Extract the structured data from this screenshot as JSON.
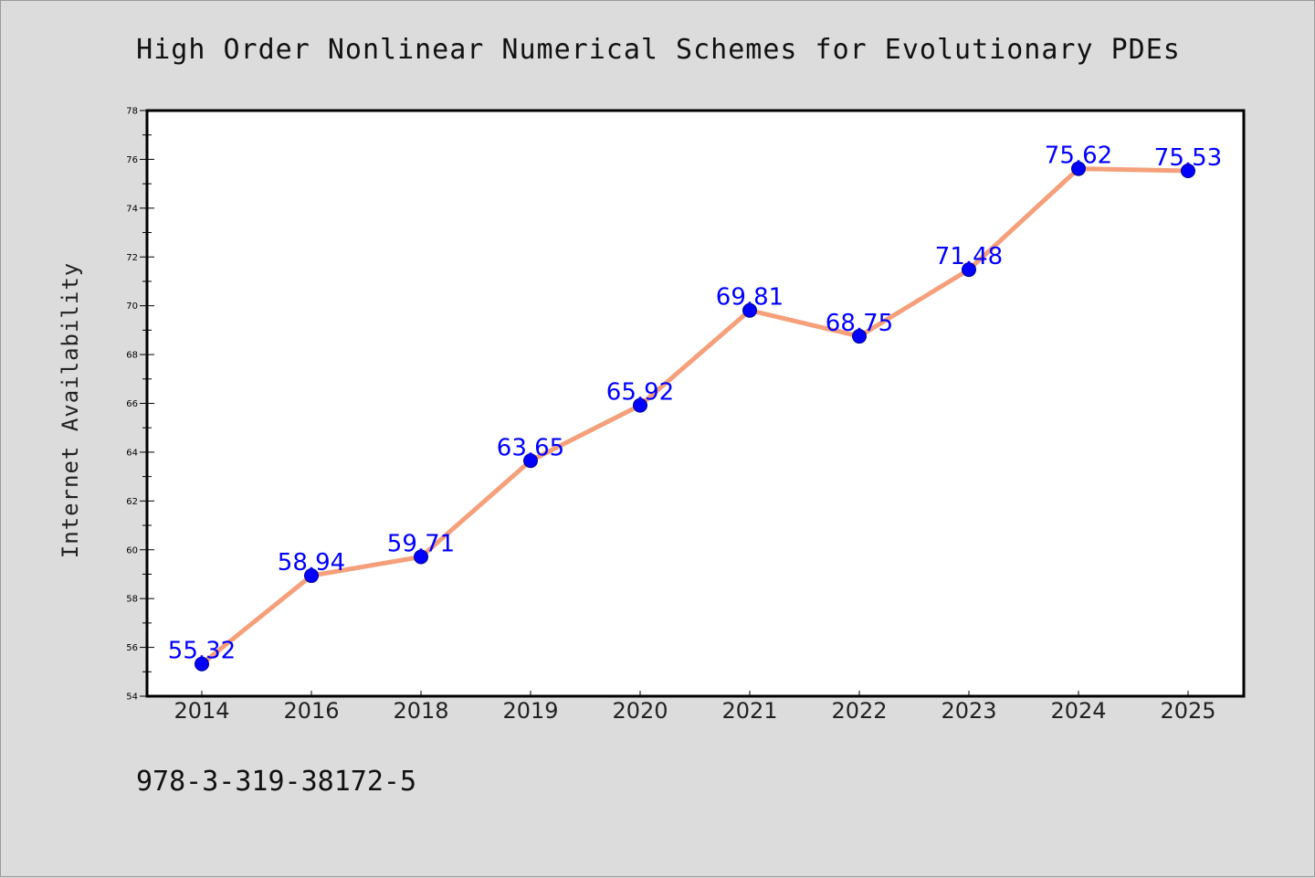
{
  "chart_data": {
    "type": "line",
    "title": "High Order Nonlinear Numerical Schemes for Evolutionary PDEs",
    "xlabel": "",
    "ylabel": "Internet Availability",
    "categories": [
      "2014",
      "2016",
      "2018",
      "2019",
      "2020",
      "2021",
      "2022",
      "2023",
      "2024",
      "2025"
    ],
    "series": [
      {
        "values": [
          55.32,
          58.94,
          59.71,
          63.65,
          65.92,
          69.81,
          68.75,
          71.48,
          75.62,
          75.53
        ],
        "labels": [
          "55.32",
          "58.94",
          "59.71",
          "63.65",
          "65.92",
          "69.81",
          "68.75",
          "71.48",
          "75.62",
          "75.53"
        ]
      }
    ],
    "ylim": [
      54,
      78
    ],
    "yticks": [
      "54",
      "56",
      "58",
      "60",
      "62",
      "64",
      "66",
      "68",
      "70",
      "72",
      "74",
      "76",
      "78"
    ],
    "grid": false,
    "line_color": "#f5a07a",
    "marker_color": "#0000ff",
    "label_color": "#0000ff",
    "footer": "978-3-319-38172-5"
  }
}
